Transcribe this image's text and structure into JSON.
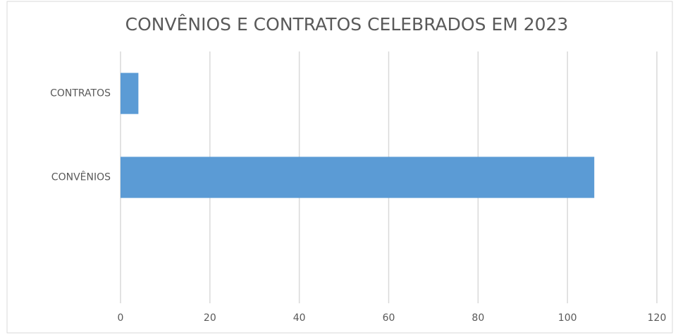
{
  "chart_data": {
    "type": "bar",
    "orientation": "horizontal",
    "title": "CONVÊNIOS E CONTRATOS CELEBRADOS EM 2023",
    "categories": [
      "CONTRATOS",
      "CONVÊNIOS",
      null
    ],
    "values": [
      4,
      106,
      null
    ],
    "color": "#5b9bd5",
    "xlim": [
      0,
      120
    ],
    "xticks": [
      0,
      20,
      40,
      60,
      80,
      100,
      120
    ],
    "grid": true
  }
}
